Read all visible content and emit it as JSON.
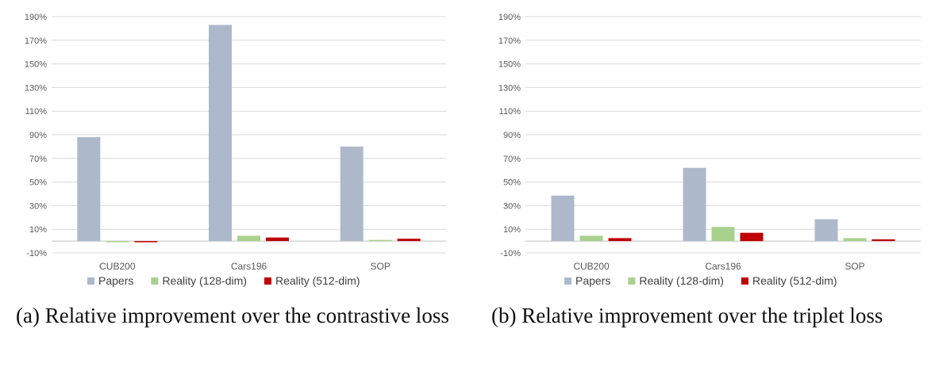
{
  "colors": {
    "papers": "#adb9ca",
    "reality128": "#a9d18e",
    "reality512": "#c00000",
    "grid": "#d9d9d9",
    "axis": "#bfbfbf"
  },
  "chart_data": [
    {
      "type": "bar",
      "caption": "(a) Relative improvement over the contrastive loss",
      "categories": [
        "CUB200",
        "Cars196",
        "SOP"
      ],
      "series": [
        {
          "name": "Papers",
          "values": [
            88,
            183,
            80
          ]
        },
        {
          "name": "Reality (128-dim)",
          "values": [
            0,
            4.5,
            1
          ]
        },
        {
          "name": "Reality (512-dim)",
          "values": [
            -1,
            3,
            2
          ]
        }
      ],
      "ylim": [
        -10,
        190
      ],
      "yticks": [
        -10,
        10,
        30,
        50,
        70,
        90,
        110,
        130,
        150,
        170,
        190
      ],
      "ytick_labels": [
        "-10%",
        "10%",
        "30%",
        "50%",
        "70%",
        "90%",
        "110%",
        "130%",
        "150%",
        "170%",
        "190%"
      ],
      "grid": true,
      "legend": "bottom"
    },
    {
      "type": "bar",
      "caption": "(b) Relative improvement over the triplet loss",
      "categories": [
        "CUB200",
        "Cars196",
        "SOP"
      ],
      "series": [
        {
          "name": "Papers",
          "values": [
            38.5,
            62,
            18.5
          ]
        },
        {
          "name": "Reality (128-dim)",
          "values": [
            4.5,
            12,
            2.5
          ]
        },
        {
          "name": "Reality (512-dim)",
          "values": [
            2.5,
            7,
            1.5
          ]
        }
      ],
      "ylim": [
        -10,
        190
      ],
      "yticks": [
        -10,
        10,
        30,
        50,
        70,
        90,
        110,
        130,
        150,
        170,
        190
      ],
      "ytick_labels": [
        "-10%",
        "10%",
        "30%",
        "50%",
        "70%",
        "90%",
        "110%",
        "130%",
        "150%",
        "170%",
        "190%"
      ],
      "grid": true,
      "legend": "bottom"
    }
  ]
}
